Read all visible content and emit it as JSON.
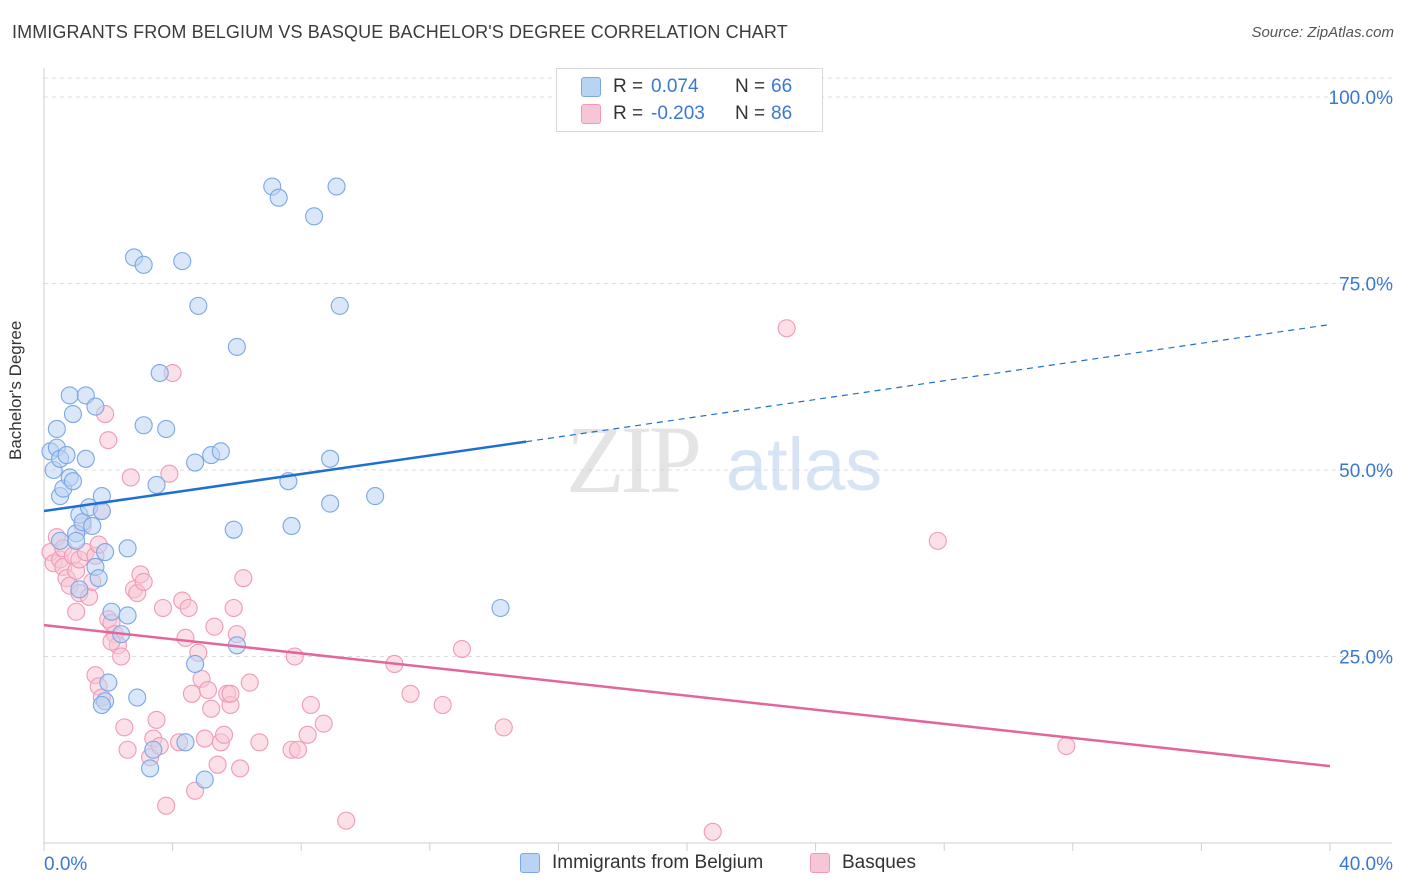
{
  "title": "IMMIGRANTS FROM BELGIUM VS BASQUE BACHELOR'S DEGREE CORRELATION CHART",
  "source": "Source: ZipAtlas.com",
  "watermark": {
    "zip": "ZIP",
    "atlas": "atlas"
  },
  "legend": [
    {
      "r_label": "R =",
      "r_value": "0.074",
      "n_label": "N =",
      "n_value": "66"
    },
    {
      "r_label": "R =",
      "r_value": "-0.203",
      "n_label": "N =",
      "n_value": "86"
    }
  ],
  "chart_data": {
    "type": "scatter",
    "title": "IMMIGRANTS FROM BELGIUM VS BASQUE BACHELOR'S DEGREE CORRELATION CHART",
    "xlabel": "",
    "ylabel": "Bachelor's Degree",
    "xlim": [
      0,
      40
    ],
    "ylim": [
      0,
      100
    ],
    "x_tick_labels": [
      "0.0%",
      "40.0%"
    ],
    "y_tick_labels": [
      "100.0%",
      "75.0%",
      "50.0%",
      "25.0%"
    ],
    "y_ticks": [
      100,
      75,
      50,
      25
    ],
    "grid": true,
    "legend_position": "bottom",
    "series": [
      {
        "name": "Immigrants from Belgium",
        "color": "#7aa7e6",
        "fill": "#b9d3f3",
        "trend_color": "#1f6fd1",
        "trend": {
          "x0": 0,
          "y0": 44.5,
          "x1": 15,
          "y1": 53.8,
          "dashed_to_x": 40,
          "dashed_to_y": 69.5
        },
        "points": [
          [
            0.2,
            52.5
          ],
          [
            0.3,
            50
          ],
          [
            0.4,
            53
          ],
          [
            0.4,
            55.5
          ],
          [
            0.5,
            51.5
          ],
          [
            0.5,
            46.5
          ],
          [
            0.6,
            47.5
          ],
          [
            0.5,
            40.5
          ],
          [
            0.7,
            52
          ],
          [
            0.8,
            49
          ],
          [
            0.9,
            48.5
          ],
          [
            0.9,
            57.5
          ],
          [
            0.8,
            60
          ],
          [
            1.0,
            41.5
          ],
          [
            1.0,
            40.5
          ],
          [
            1.1,
            34
          ],
          [
            1.1,
            44
          ],
          [
            1.2,
            43
          ],
          [
            1.3,
            60
          ],
          [
            1.3,
            51.5
          ],
          [
            1.4,
            45
          ],
          [
            1.5,
            42.5
          ],
          [
            1.6,
            58.5
          ],
          [
            1.6,
            37
          ],
          [
            1.7,
            35.5
          ],
          [
            1.8,
            46.5
          ],
          [
            1.8,
            44.5
          ],
          [
            1.9,
            39
          ],
          [
            2.0,
            21.5
          ],
          [
            2.1,
            31
          ],
          [
            1.9,
            19
          ],
          [
            1.8,
            18.5
          ],
          [
            2.4,
            28
          ],
          [
            2.6,
            30.5
          ],
          [
            2.6,
            39.5
          ],
          [
            2.8,
            78.5
          ],
          [
            2.9,
            19.5
          ],
          [
            3.1,
            56
          ],
          [
            3.1,
            77.5
          ],
          [
            3.3,
            10
          ],
          [
            3.4,
            12.5
          ],
          [
            3.5,
            48
          ],
          [
            3.6,
            63
          ],
          [
            3.8,
            55.5
          ],
          [
            4.3,
            78
          ],
          [
            4.4,
            13.5
          ],
          [
            4.7,
            51
          ],
          [
            4.7,
            24
          ],
          [
            4.8,
            72
          ],
          [
            5.0,
            8.5
          ],
          [
            5.2,
            52
          ],
          [
            5.5,
            52.5
          ],
          [
            5.9,
            42
          ],
          [
            6.0,
            26.5
          ],
          [
            6.0,
            66.5
          ],
          [
            7.1,
            88
          ],
          [
            7.3,
            86.5
          ],
          [
            7.6,
            48.5
          ],
          [
            7.7,
            42.5
          ],
          [
            8.4,
            84
          ],
          [
            8.9,
            51.5
          ],
          [
            8.9,
            45.5
          ],
          [
            9.1,
            88
          ],
          [
            9.2,
            72
          ],
          [
            10.3,
            46.5
          ],
          [
            14.2,
            31.5
          ]
        ]
      },
      {
        "name": "Basques",
        "color": "#ef9ab6",
        "fill": "#f7c6d6",
        "trend_color": "#e2669a",
        "trend": {
          "x0": 0,
          "y0": 29.2,
          "x1": 40,
          "y1": 10.3
        },
        "points": [
          [
            0.2,
            39
          ],
          [
            0.3,
            37.5
          ],
          [
            0.4,
            41
          ],
          [
            0.5,
            38
          ],
          [
            0.6,
            37
          ],
          [
            0.6,
            39.5
          ],
          [
            0.7,
            35.5
          ],
          [
            0.8,
            34.5
          ],
          [
            0.9,
            38.5
          ],
          [
            1.0,
            31
          ],
          [
            1.0,
            36.5
          ],
          [
            1.1,
            33.5
          ],
          [
            1.1,
            38
          ],
          [
            1.2,
            42.5
          ],
          [
            1.3,
            39
          ],
          [
            1.4,
            33
          ],
          [
            1.5,
            35
          ],
          [
            1.6,
            38.5
          ],
          [
            1.7,
            40
          ],
          [
            1.8,
            44.5
          ],
          [
            1.9,
            57.5
          ],
          [
            2.0,
            54
          ],
          [
            1.6,
            22.5
          ],
          [
            1.7,
            21
          ],
          [
            1.8,
            19.5
          ],
          [
            2.0,
            30
          ],
          [
            2.1,
            29.5
          ],
          [
            2.2,
            28
          ],
          [
            2.3,
            26.5
          ],
          [
            2.4,
            25
          ],
          [
            2.5,
            15.5
          ],
          [
            2.6,
            12.5
          ],
          [
            2.7,
            49
          ],
          [
            2.8,
            34
          ],
          [
            2.9,
            33.5
          ],
          [
            3.0,
            36
          ],
          [
            3.1,
            35
          ],
          [
            3.3,
            11.5
          ],
          [
            3.4,
            14
          ],
          [
            3.5,
            16.5
          ],
          [
            3.6,
            13
          ],
          [
            3.7,
            31.5
          ],
          [
            3.8,
            5
          ],
          [
            3.9,
            49.5
          ],
          [
            4.0,
            63
          ],
          [
            4.2,
            13.5
          ],
          [
            4.3,
            32.5
          ],
          [
            4.4,
            27.5
          ],
          [
            4.5,
            31.5
          ],
          [
            4.6,
            20
          ],
          [
            4.7,
            7
          ],
          [
            4.8,
            25.5
          ],
          [
            4.9,
            22
          ],
          [
            5.0,
            14
          ],
          [
            5.1,
            20.5
          ],
          [
            5.2,
            18
          ],
          [
            5.3,
            29
          ],
          [
            5.4,
            10.5
          ],
          [
            5.5,
            13.5
          ],
          [
            5.6,
            14.5
          ],
          [
            5.7,
            20
          ],
          [
            5.8,
            18.5
          ],
          [
            5.9,
            31.5
          ],
          [
            6.0,
            28
          ],
          [
            6.1,
            10
          ],
          [
            6.2,
            35.5
          ],
          [
            6.4,
            21.5
          ],
          [
            6.7,
            13.5
          ],
          [
            7.7,
            12.5
          ],
          [
            7.9,
            12.5
          ],
          [
            7.8,
            25
          ],
          [
            8.2,
            14.5
          ],
          [
            8.3,
            18.5
          ],
          [
            8.7,
            16
          ],
          [
            9.4,
            3
          ],
          [
            10.9,
            24
          ],
          [
            11.4,
            20
          ],
          [
            12.4,
            18.5
          ],
          [
            13.0,
            26
          ],
          [
            14.3,
            15.5
          ],
          [
            20.8,
            1.5
          ],
          [
            23.1,
            69
          ],
          [
            27.8,
            40.5
          ],
          [
            31.8,
            13
          ],
          [
            2.1,
            27
          ],
          [
            5.8,
            20
          ]
        ]
      }
    ]
  },
  "bottom_legend": [
    {
      "label": "Immigrants from Belgium"
    },
    {
      "label": "Basques"
    }
  ],
  "colors": {
    "blue_fill": "#b9d3f3",
    "blue_stroke": "#7aa7e6",
    "pink_fill": "#f7c6d6",
    "pink_stroke": "#ef9ab6",
    "tick_label": "#3a78d4",
    "grid": "#dcdcdc"
  }
}
